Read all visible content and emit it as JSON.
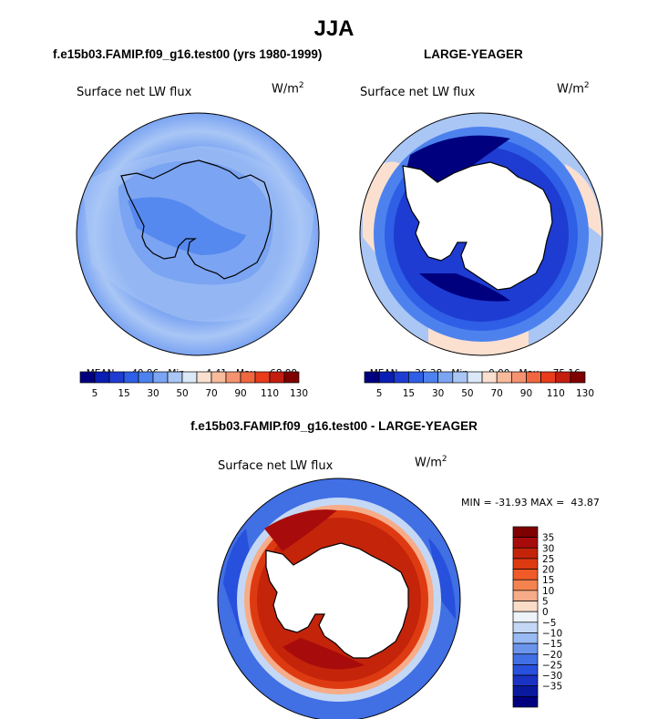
{
  "title": "JJA",
  "panels": [
    {
      "title": "f.e15b03.FAMIP.f09_g16.test00 (yrs 1980-1999)",
      "field_label": "Surface net LW flux",
      "units_base": "W/m",
      "units_exp": "2",
      "stats": {
        "mean_label": "MEAN=",
        "mean": "40.96",
        "min_label": "Min=",
        "min": "-4.41",
        "max_label": "Max=",
        "max": "68.99"
      },
      "colorbar_ticks": [
        "5",
        "15",
        "30",
        "50",
        "70",
        "90",
        "110",
        "130"
      ]
    },
    {
      "title": "LARGE-YEAGER",
      "field_label": "Surface net LW flux",
      "units_base": "W/m",
      "units_exp": "2",
      "stats": {
        "mean_label": "MEAN=",
        "mean": "36.38",
        "min_label": "Min=",
        "min": "0.00",
        "max_label": "Max=",
        "max": "75.16"
      },
      "colorbar_ticks": [
        "5",
        "15",
        "30",
        "50",
        "70",
        "90",
        "110",
        "130"
      ]
    }
  ],
  "diff_panel": {
    "title": "f.e15b03.FAMIP.f09_g16.test00 - LARGE-YEAGER",
    "field_label": "Surface net LW flux",
    "units_base": "W/m",
    "units_exp": "2",
    "minmax": "MIN = -31.93 MAX =  43.87",
    "colorbar_ticks": [
      "35",
      "30",
      "25",
      "20",
      "15",
      "10",
      "5",
      "0",
      "−5",
      "−10",
      "−15",
      "−20",
      "−25",
      "−30",
      "−35"
    ]
  },
  "colors": {
    "abs_scale": [
      "#00007f",
      "#0a1eb4",
      "#1e3cd2",
      "#2e5fe6",
      "#4d82ee",
      "#7ba4f2",
      "#a9c6f5",
      "#dbe8f8",
      "#fbe0d0",
      "#f8bb9c",
      "#f59270",
      "#f0673f",
      "#e83c1b",
      "#c41d0e",
      "#7f0000"
    ],
    "diff_scale": [
      "#7f0000",
      "#a80b0b",
      "#c4240a",
      "#de3a12",
      "#f05a28",
      "#f4834f",
      "#f6ac88",
      "#fbdcc7",
      "#eef3fa",
      "#c4d8f5",
      "#99baf2",
      "#6b95ec",
      "#416fe4",
      "#2750dc",
      "#1a33c4",
      "#0a1a9e",
      "#00007f"
    ],
    "ocean_light": "#8fb0ee",
    "ocean_mid": "#6a92e8",
    "coast": "#000000"
  }
}
